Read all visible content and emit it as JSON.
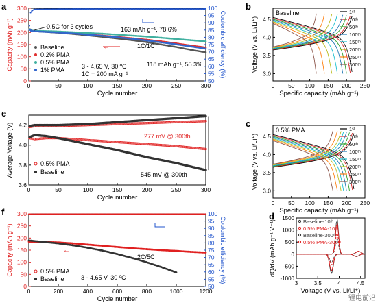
{
  "watermark": "锂电前沿",
  "chart_data": [
    {
      "panel": "a",
      "type": "scatter",
      "xlabel": "Cycle number",
      "ylabel": "Capacity (mAh g⁻¹)",
      "y2label": "Coulombic efficiency (%)",
      "xlim": [
        0,
        300
      ],
      "ylim": [
        0,
        300
      ],
      "y2lim": [
        50,
        100
      ],
      "xticks": [
        0,
        50,
        100,
        150,
        200,
        250,
        300
      ],
      "yticks": [
        0,
        50,
        100,
        150,
        200,
        250,
        300
      ],
      "y2ticks": [
        50,
        55,
        60,
        65,
        70,
        75,
        80,
        85,
        90,
        95,
        100
      ],
      "annotations": [
        "0.5C for 3 cycles",
        "163 mAh g⁻¹, 78.6%",
        "118 mAh g⁻¹, 55.3%",
        "1C/1C",
        "3 - 4.65 V, 30 ºC",
        "1C = 200 mA g⁻¹"
      ],
      "legend": [
        "Baseline",
        "0.2% PMA",
        "0.5% PMA",
        "1% PMA"
      ],
      "series": [
        {
          "name": "Baseline",
          "color": "#555555",
          "x": [
            1,
            2,
            3,
            4,
            10,
            25,
            50,
            75,
            100,
            125,
            150,
            175,
            200,
            225,
            250,
            275,
            300
          ],
          "y": [
            213,
            212,
            211,
            206,
            205,
            203,
            199,
            194,
            188,
            182,
            175,
            168,
            160,
            150,
            140,
            128,
            118
          ]
        },
        {
          "name": "0.2% PMA",
          "color": "#e03030",
          "x": [
            1,
            2,
            3,
            4,
            10,
            25,
            50,
            75,
            100,
            125,
            150,
            175,
            200,
            225,
            250,
            275,
            300
          ],
          "y": [
            214,
            213,
            212,
            208,
            207,
            205,
            201,
            197,
            192,
            187,
            182,
            176,
            170,
            163,
            155,
            146,
            138
          ]
        },
        {
          "name": "0.5% PMA",
          "color": "#40b0a0",
          "x": [
            1,
            2,
            3,
            4,
            10,
            25,
            50,
            75,
            100,
            125,
            150,
            175,
            200,
            225,
            250,
            275,
            300
          ],
          "y": [
            214,
            213,
            212,
            208,
            207,
            206,
            204,
            201,
            198,
            195,
            191,
            187,
            183,
            178,
            173,
            168,
            163
          ]
        },
        {
          "name": "1% PMA",
          "color": "#3366cc",
          "x": [
            1,
            2,
            3,
            4,
            10,
            25,
            50,
            75,
            100,
            125,
            150,
            175,
            200,
            225,
            250,
            275,
            300
          ],
          "y": [
            212,
            211,
            210,
            206,
            205,
            203,
            200,
            196,
            191,
            186,
            180,
            174,
            167,
            159,
            151,
            142,
            133
          ]
        }
      ],
      "ce_series": {
        "x": [
          1,
          3,
          6,
          10,
          50,
          100,
          150,
          200,
          250,
          300
        ],
        "y": [
          88,
          97,
          98.5,
          99.2,
          99.4,
          99.5,
          99.5,
          99.5,
          99.5,
          99.5
        ]
      }
    },
    {
      "panel": "b",
      "type": "line",
      "xlabel": "Specific capacity (mAh g⁻¹)",
      "ylabel": "Voltage (V vs. Li/Li⁺)",
      "title": "Baseline",
      "xlim": [
        0,
        250
      ],
      "ylim": [
        2.8,
        4.8
      ],
      "xticks": [
        0,
        50,
        100,
        150,
        200,
        250
      ],
      "yticks": [
        3.0,
        3.5,
        4.0,
        4.5
      ],
      "legend": [
        "1st",
        "10th",
        "50th",
        "100th",
        "150th",
        "200th",
        "250th",
        "300th"
      ],
      "end_capacities": [
        215,
        210,
        200,
        190,
        175,
        160,
        140,
        118
      ]
    },
    {
      "panel": "c",
      "type": "line",
      "xlabel": "Specific capacity (mAh g⁻¹)",
      "ylabel": "Voltage (V vs. Li/Li⁺)",
      "title": "0.5% PMA",
      "xlim": [
        0,
        250
      ],
      "ylim": [
        2.8,
        4.8
      ],
      "xticks": [
        0,
        50,
        100,
        150,
        200,
        250
      ],
      "yticks": [
        3.0,
        3.5,
        4.0,
        4.5
      ],
      "legend": [
        "1st",
        "10th",
        "50th",
        "100th",
        "150th",
        "200th",
        "250th",
        "300th"
      ],
      "end_capacities": [
        220,
        216,
        208,
        200,
        192,
        185,
        175,
        163
      ]
    },
    {
      "panel": "d",
      "type": "line",
      "xlabel": "Voltage (V vs. Li/Li⁺)",
      "ylabel": "dQ/dV (mAh g⁻¹ V⁻¹)",
      "xlim": [
        3.0,
        4.6
      ],
      "ylim": [
        -1000,
        1500
      ],
      "xticks": [
        3.0,
        3.5,
        4.0,
        4.5
      ],
      "yticks": [
        -1000,
        -500,
        0,
        500,
        1000,
        1500
      ],
      "legend": [
        "Baseline-10th",
        "0.5% PMA-10th",
        "Baseline-300th",
        "0.5% PMA-300th"
      ]
    },
    {
      "panel": "e",
      "type": "scatter",
      "xlabel": "Cycle number",
      "ylabel": "Average Voltage (V)",
      "xlim": [
        0,
        300
      ],
      "ylim": [
        3.6,
        4.3
      ],
      "xticks": [
        0,
        50,
        100,
        150,
        200,
        250,
        300
      ],
      "yticks": [
        3.6,
        3.8,
        4.0,
        4.2
      ],
      "annotations": [
        "277 mV @ 300th",
        "545 mV @ 300th"
      ],
      "legend": [
        "0.5% PMA",
        "Baseline"
      ],
      "series": [
        {
          "name": "0.5% PMA charge",
          "x": [
            1,
            10,
            30,
            50,
            100,
            150,
            200,
            250,
            300
          ],
          "y": [
            4.18,
            4.19,
            4.19,
            4.19,
            4.2,
            4.21,
            4.22,
            4.23,
            4.24
          ]
        },
        {
          "name": "0.5% PMA discharge",
          "x": [
            1,
            10,
            30,
            50,
            100,
            150,
            200,
            250,
            300
          ],
          "y": [
            4.07,
            4.06,
            4.07,
            4.07,
            4.05,
            4.03,
            4.01,
            3.99,
            3.96
          ]
        },
        {
          "name": "Baseline charge",
          "x": [
            1,
            10,
            30,
            50,
            100,
            150,
            200,
            250,
            300
          ],
          "y": [
            4.19,
            4.2,
            4.2,
            4.2,
            4.21,
            4.23,
            4.25,
            4.27,
            4.29
          ]
        },
        {
          "name": "Baseline discharge",
          "x": [
            1,
            10,
            30,
            50,
            100,
            150,
            200,
            250,
            300
          ],
          "y": [
            4.08,
            4.1,
            4.09,
            4.07,
            4.01,
            3.95,
            3.88,
            3.82,
            3.75
          ]
        }
      ]
    },
    {
      "panel": "f",
      "type": "scatter",
      "xlabel": "Cycle number",
      "ylabel": "Capacity (mAh g⁻¹)",
      "y2label": "Coulombic efficiency (%)",
      "xlim": [
        0,
        1200
      ],
      "ylim": [
        0,
        300
      ],
      "y2lim": [
        50,
        100
      ],
      "xticks": [
        0,
        200,
        400,
        600,
        800,
        1000,
        1200
      ],
      "yticks": [
        0,
        50,
        100,
        150,
        200,
        250,
        300
      ],
      "y2ticks": [
        50,
        55,
        60,
        65,
        70,
        75,
        80,
        85,
        90,
        95,
        100
      ],
      "annotations": [
        "2C/5C",
        "3 - 4.65 V, 30 ºC"
      ],
      "legend": [
        "0.5% PMA",
        "Baseline"
      ],
      "series": [
        {
          "name": "0.5% PMA",
          "x": [
            0,
            100,
            200,
            300,
            400,
            500,
            600,
            700,
            800,
            900,
            1000,
            1100,
            1200
          ],
          "y": [
            185,
            184,
            182,
            178,
            173,
            168,
            163,
            158,
            154,
            150,
            147,
            143,
            140
          ]
        },
        {
          "name": "Baseline",
          "x": [
            0,
            100,
            200,
            300,
            400,
            500,
            600,
            700,
            800,
            900,
            1000
          ],
          "y": [
            190,
            184,
            178,
            170,
            160,
            148,
            134,
            118,
            100,
            80,
            58
          ]
        }
      ],
      "ce_series": {
        "x": [
          0,
          100,
          300,
          600,
          900,
          1200
        ],
        "y": [
          99.7,
          99.8,
          99.8,
          99.8,
          99.8,
          99.8
        ]
      }
    }
  ]
}
